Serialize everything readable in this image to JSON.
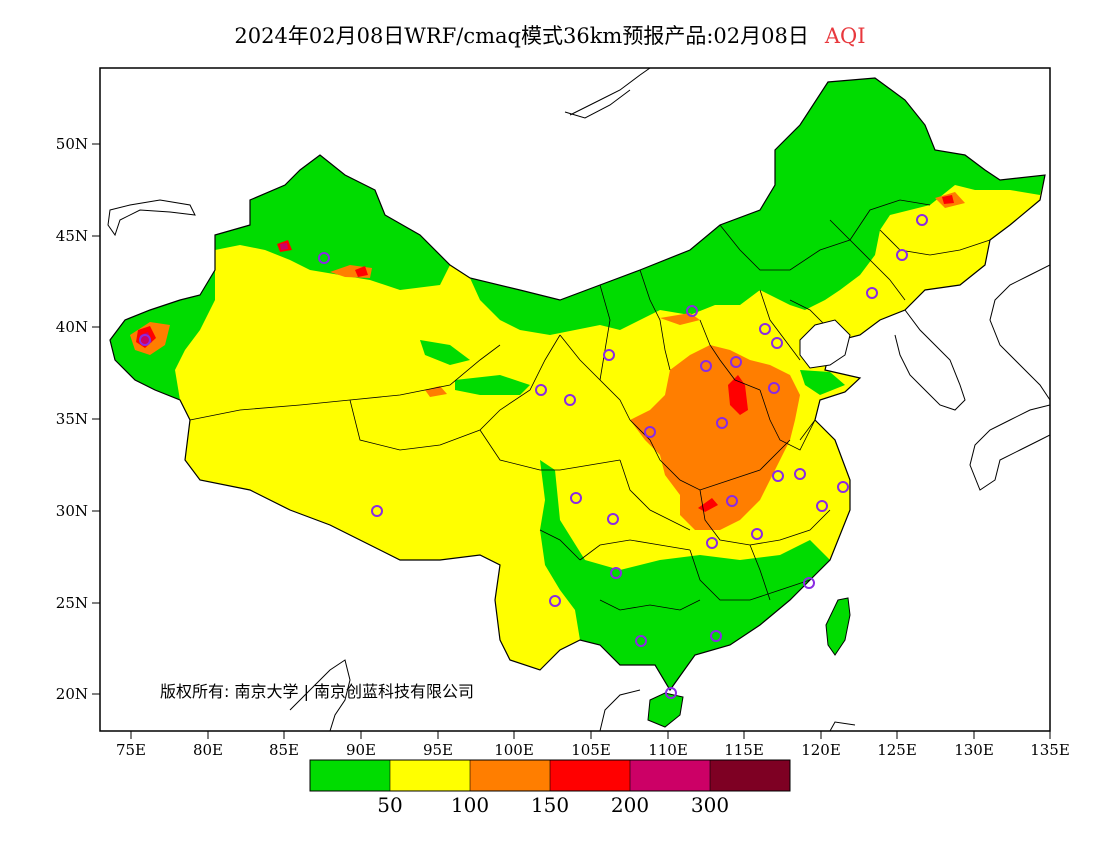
{
  "title": {
    "main": "2024年02月08日WRF/cmaq模式36km预报产品:02月08日",
    "variable": "AQI",
    "variable_color": "#e8383d"
  },
  "copyright": "版权所有: 南京大学 | 南京创蓝科技有限公司",
  "axes": {
    "lon_ticks": [
      "75E",
      "80E",
      "85E",
      "90E",
      "95E",
      "100E",
      "105E",
      "110E",
      "115E",
      "120E",
      "125E",
      "130E",
      "135E"
    ],
    "lat_ticks": [
      "20N",
      "25N",
      "30N",
      "35N",
      "40N",
      "45N",
      "50N"
    ],
    "lon_range": [
      73,
      135
    ],
    "lat_range": [
      18,
      54
    ]
  },
  "colorbar": {
    "colors": [
      "#00dc00",
      "#ffff00",
      "#ff7e00",
      "#ff0000",
      "#cc0066",
      "#7e0023"
    ],
    "labels": [
      "50",
      "100",
      "150",
      "200",
      "300"
    ]
  },
  "category_colors": {
    "good": "#00dc00",
    "moderate": "#ffff00",
    "light": "#ff7e00",
    "medium": "#ff0000",
    "heavy": "#cc0066",
    "severe": "#7e0023",
    "station": "#8a2be2"
  }
}
